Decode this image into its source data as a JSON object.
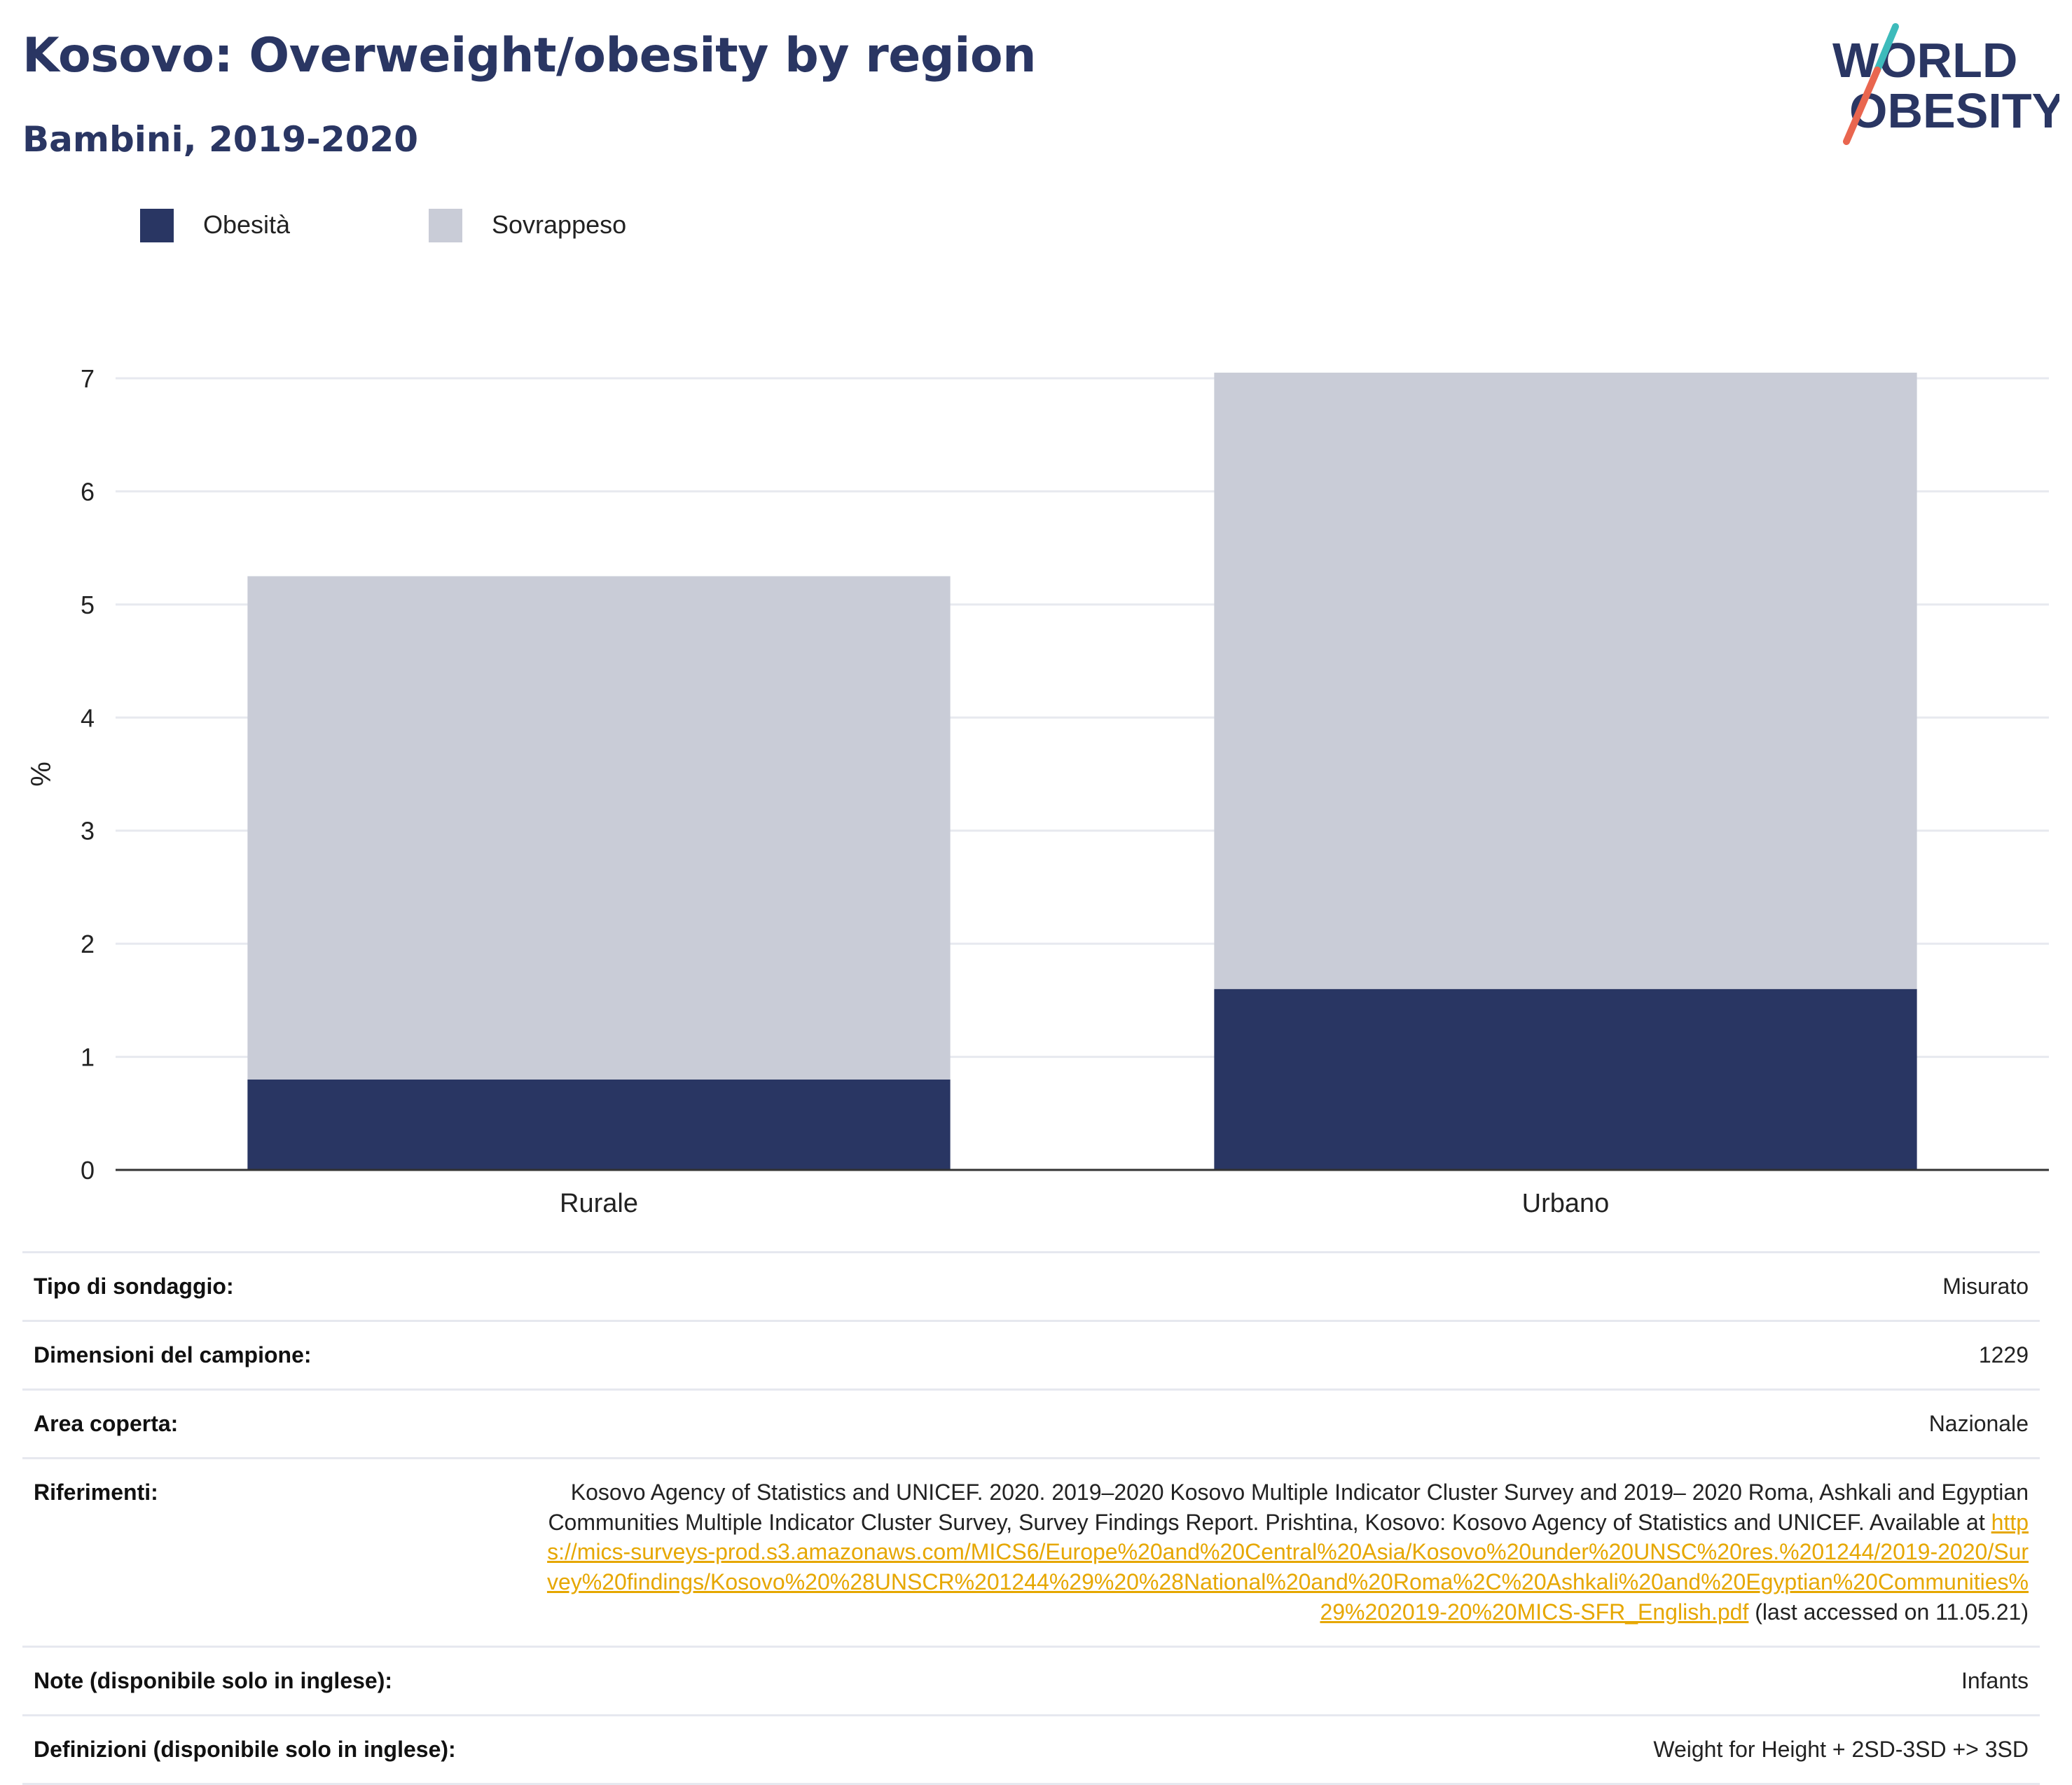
{
  "title": "Kosovo: Overweight/obesity by region",
  "subtitle": "Bambini, 2019-2020",
  "logo": {
    "line1": "WORLD",
    "line2": "OBESITY"
  },
  "colors": {
    "obesity": "#293663",
    "overweight": "#c9ccd7",
    "title": "#2a3663",
    "link": "#e6a700",
    "logo_teal": "#3dbbbb",
    "logo_coral": "#e9664f"
  },
  "legend": [
    {
      "label": "Obesità",
      "color": "#293663"
    },
    {
      "label": "Sovrappeso",
      "color": "#c9ccd7"
    }
  ],
  "chart_data": {
    "type": "bar",
    "stacked": true,
    "categories": [
      "Rurale",
      "Urbano"
    ],
    "series": [
      {
        "name": "Obesità",
        "values": [
          0.8,
          1.6
        ]
      },
      {
        "name": "Sovrappeso",
        "values": [
          4.45,
          5.45
        ]
      }
    ],
    "ylabel": "%",
    "ylim": [
      0,
      7
    ],
    "yticks": [
      0,
      1,
      2,
      3,
      4,
      5,
      6,
      7
    ],
    "grid": true,
    "legend_position": "top-left"
  },
  "info": {
    "survey_type_label": "Tipo di sondaggio:",
    "survey_type_value": "Misurato",
    "sample_size_label": "Dimensioni del campione:",
    "sample_size_value": "1229",
    "area_label": "Area coperta:",
    "area_value": "Nazionale",
    "references_label": "Riferimenti:",
    "references_text": "Kosovo Agency of Statistics and UNICEF. 2020. 2019–2020 Kosovo Multiple Indicator Cluster Survey and 2019– 2020 Roma, Ashkali and Egyptian Communities Multiple Indicator Cluster Survey, Survey Findings Report. Prishtina, Kosovo: Kosovo Agency of Statistics and UNICEF. Available at ",
    "references_link": "https://mics-surveys-prod.s3.amazonaws.com/MICS6/Europe%20and%20Central%20Asia/Kosovo%20under%20UNSC%20res.%201244/2019-2020/Survey%20findings/Kosovo%20%28UNSCR%201244%29%20%28National%20and%20Roma%2C%20Ashkali%20and%20Egyptian%20Communities%29%202019-20%20MICS-SFR_English.pdf",
    "references_suffix": " (last accessed on 11.05.21)",
    "notes_label": "Note (disponibile solo in inglese):",
    "notes_value": "Infants",
    "definitions_label": "Definizioni (disponibile solo in inglese):",
    "definitions_value": "Weight for Height + 2SD-3SD +> 3SD"
  }
}
